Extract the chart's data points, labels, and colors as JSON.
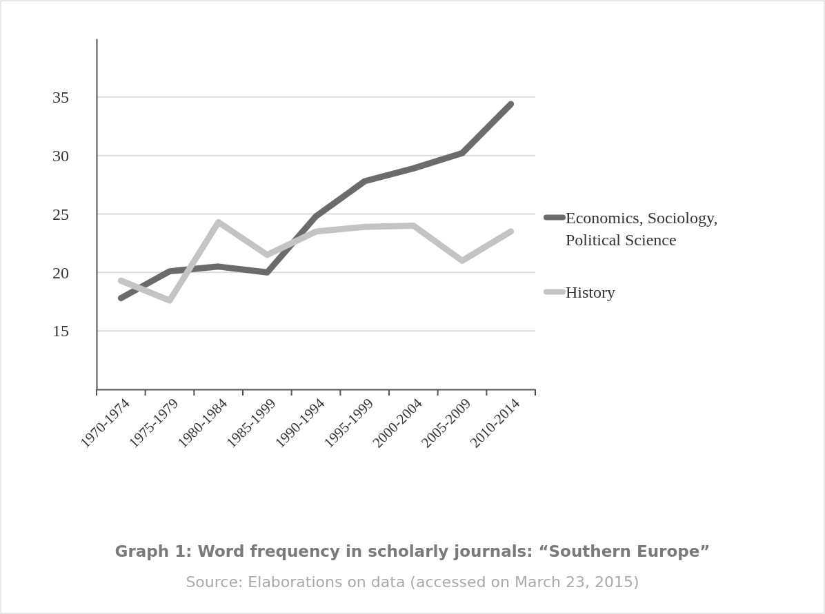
{
  "chart_data": {
    "type": "line",
    "title": "Graph 1: Word frequency in scholarly journals: “Southern Europe”",
    "annotations": [
      "Source: Elaborations on data (accessed on March 23, 2015)"
    ],
    "categories": [
      "1970-1974",
      "1975-1979",
      "1980-1984",
      "1985-1999",
      "1990-1994",
      "1995-1999",
      "2000-2004",
      "2005-2009",
      "2010-2014"
    ],
    "series": [
      {
        "name": "Economics, Sociology, Political Science",
        "color": "#6b6b6d",
        "values": [
          17.8,
          20.1,
          20.5,
          20.0,
          24.8,
          27.8,
          28.9,
          30.2,
          34.4
        ]
      },
      {
        "name": "History",
        "color": "#c4c4c6",
        "values": [
          19.3,
          17.6,
          24.3,
          21.5,
          23.5,
          23.9,
          24.0,
          21.0,
          23.5
        ]
      }
    ],
    "ylim": [
      10,
      40
    ],
    "yticks": [
      15,
      20,
      25,
      30,
      35
    ],
    "grid": "y",
    "legend": "right",
    "marker": "none",
    "line_style": "solid"
  }
}
